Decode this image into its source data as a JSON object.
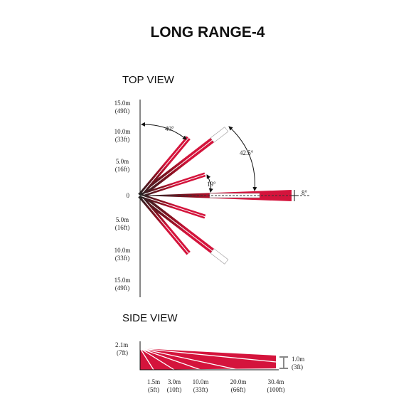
{
  "header": {
    "title": "LONG RANGE-4"
  },
  "top_view": {
    "title": "TOP VIEW",
    "y_labels": [
      {
        "m": "15.0m",
        "ft": "(49ft)"
      },
      {
        "m": "10.0m",
        "ft": "(33ft)"
      },
      {
        "m": "5.0m",
        "ft": "(16ft)"
      },
      {
        "m": "0"
      },
      {
        "m": "5.0m",
        "ft": "(16ft)"
      },
      {
        "m": "10.0m",
        "ft": "(33ft)"
      },
      {
        "m": "15.0m",
        "ft": "(49ft)"
      }
    ],
    "angles": [
      "40°",
      "42.5°",
      "19°",
      "8°"
    ]
  },
  "side_view": {
    "title": "SIDE VIEW",
    "height": {
      "m": "2.1m",
      "ft": "(7ft)"
    },
    "end_height": {
      "m": "1.0m",
      "ft": "(3ft)"
    },
    "distances": [
      {
        "m": "1.5m",
        "ft": "(5ft)"
      },
      {
        "m": "3.0m",
        "ft": "(10ft)"
      },
      {
        "m": "10.0m",
        "ft": "(33ft)"
      },
      {
        "m": "20.0m",
        "ft": "(66ft)"
      },
      {
        "m": "30.4m",
        "ft": "(100ft)"
      }
    ]
  }
}
